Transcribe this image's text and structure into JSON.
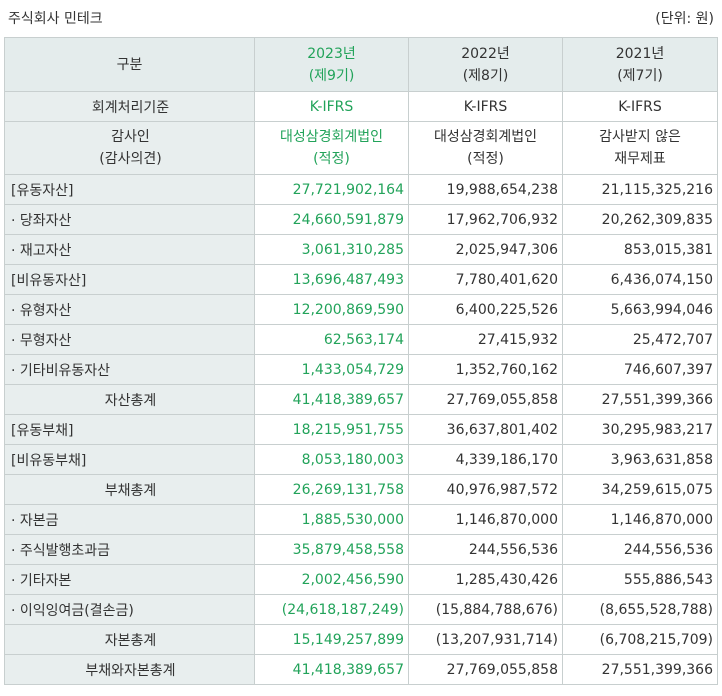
{
  "header": {
    "company": "주식회사 민테크",
    "unit": "(단위: 원)"
  },
  "table": {
    "corner": "구분",
    "columns": [
      {
        "year": "2023년",
        "period": "(제9기)"
      },
      {
        "year": "2022년",
        "period": "(제8기)"
      },
      {
        "year": "2021년",
        "period": "(제7기)"
      }
    ],
    "standard": {
      "label": "회계처리기준",
      "values": [
        "K-IFRS",
        "K-IFRS",
        "K-IFRS"
      ]
    },
    "auditor": {
      "label_line1": "감사인",
      "label_line2": "(감사의견)",
      "values": [
        {
          "line1": "대성삼경회계법인",
          "line2": "(적정)"
        },
        {
          "line1": "대성삼경회계법인",
          "line2": "(적정)"
        },
        {
          "line1": "감사받지 않은",
          "line2": "재무제표"
        }
      ]
    },
    "rows": [
      {
        "label": "[유동자산]",
        "align": "left",
        "values": [
          "27,721,902,164",
          "19,988,654,238",
          "21,115,325,216"
        ]
      },
      {
        "label": "· 당좌자산",
        "align": "left",
        "values": [
          "24,660,591,879",
          "17,962,706,932",
          "20,262,309,835"
        ]
      },
      {
        "label": "· 재고자산",
        "align": "left",
        "values": [
          "3,061,310,285",
          "2,025,947,306",
          "853,015,381"
        ]
      },
      {
        "label": "[비유동자산]",
        "align": "left",
        "values": [
          "13,696,487,493",
          "7,780,401,620",
          "6,436,074,150"
        ]
      },
      {
        "label": "· 유형자산",
        "align": "left",
        "values": [
          "12,200,869,590",
          "6,400,225,526",
          "5,663,994,046"
        ]
      },
      {
        "label": "· 무형자산",
        "align": "left",
        "values": [
          "62,563,174",
          "27,415,932",
          "25,472,707"
        ]
      },
      {
        "label": "· 기타비유동자산",
        "align": "left",
        "values": [
          "1,433,054,729",
          "1,352,760,162",
          "746,607,397"
        ]
      },
      {
        "label": "자산총계",
        "align": "center",
        "values": [
          "41,418,389,657",
          "27,769,055,858",
          "27,551,399,366"
        ]
      },
      {
        "label": "[유동부채]",
        "align": "left",
        "values": [
          "18,215,951,755",
          "36,637,801,402",
          "30,295,983,217"
        ]
      },
      {
        "label": "[비유동부채]",
        "align": "left",
        "values": [
          "8,053,180,003",
          "4,339,186,170",
          "3,963,631,858"
        ]
      },
      {
        "label": "부채총계",
        "align": "center",
        "values": [
          "26,269,131,758",
          "40,976,987,572",
          "34,259,615,075"
        ]
      },
      {
        "label": "· 자본금",
        "align": "left",
        "values": [
          "1,885,530,000",
          "1,146,870,000",
          "1,146,870,000"
        ]
      },
      {
        "label": "· 주식발행초과금",
        "align": "left",
        "values": [
          "35,879,458,558",
          "244,556,536",
          "244,556,536"
        ]
      },
      {
        "label": "· 기타자본",
        "align": "left",
        "values": [
          "2,002,456,590",
          "1,285,430,426",
          "555,886,543"
        ]
      },
      {
        "label": "· 이익잉여금(결손금)",
        "align": "left",
        "values": [
          "(24,618,187,249)",
          "(15,884,788,676)",
          "(8,655,528,788)"
        ]
      },
      {
        "label": "자본총계",
        "align": "center",
        "values": [
          "15,149,257,899",
          "(13,207,931,714)",
          "(6,708,215,709)"
        ]
      },
      {
        "label": "부채와자본총계",
        "align": "center",
        "values": [
          "41,418,389,657",
          "27,769,055,858",
          "27,551,399,366"
        ]
      }
    ]
  },
  "colors": {
    "current_period": "#22a35a",
    "header_bg": "#e4ecec",
    "label_bg": "#e8eeee",
    "border": "#c8cfcf"
  }
}
